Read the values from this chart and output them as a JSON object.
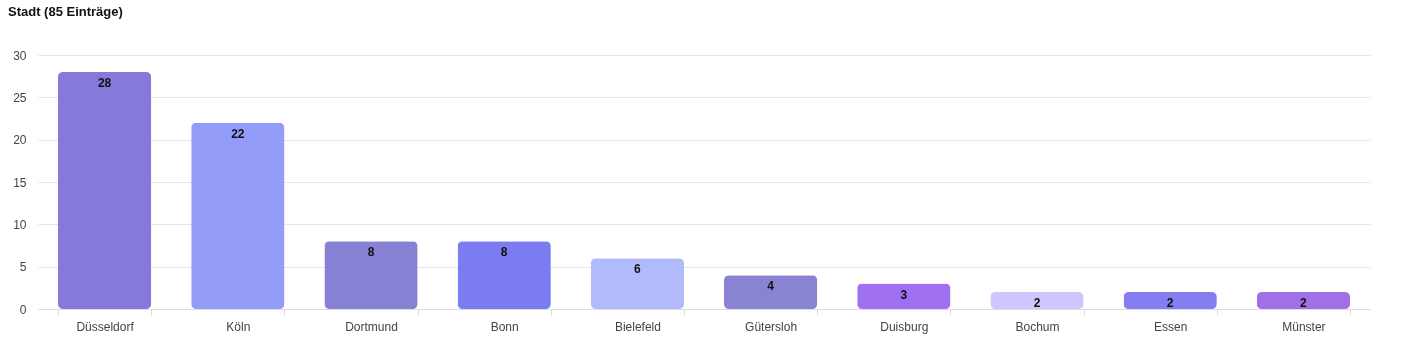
{
  "chart_data": {
    "type": "bar",
    "title": "Stadt (85 Einträge)",
    "categories": [
      "Düsseldorf",
      "Köln",
      "Dortmund",
      "Bonn",
      "Bielefeld",
      "Gütersloh",
      "Duisburg",
      "Bochum",
      "Essen",
      "Münster"
    ],
    "values": [
      28,
      22,
      8,
      8,
      6,
      4,
      3,
      2,
      2,
      2
    ],
    "colors": [
      "#8579dc",
      "#949cfa",
      "#8781d3",
      "#7b7cf2",
      "#b1bbfc",
      "#8983d4",
      "#a070f2",
      "#d0c5fc",
      "#857df0",
      "#a070e6"
    ],
    "ylim": [
      0,
      30
    ],
    "yticks": [
      0,
      5,
      10,
      15,
      20,
      25,
      30
    ],
    "grid": "y",
    "data_labels": true
  }
}
